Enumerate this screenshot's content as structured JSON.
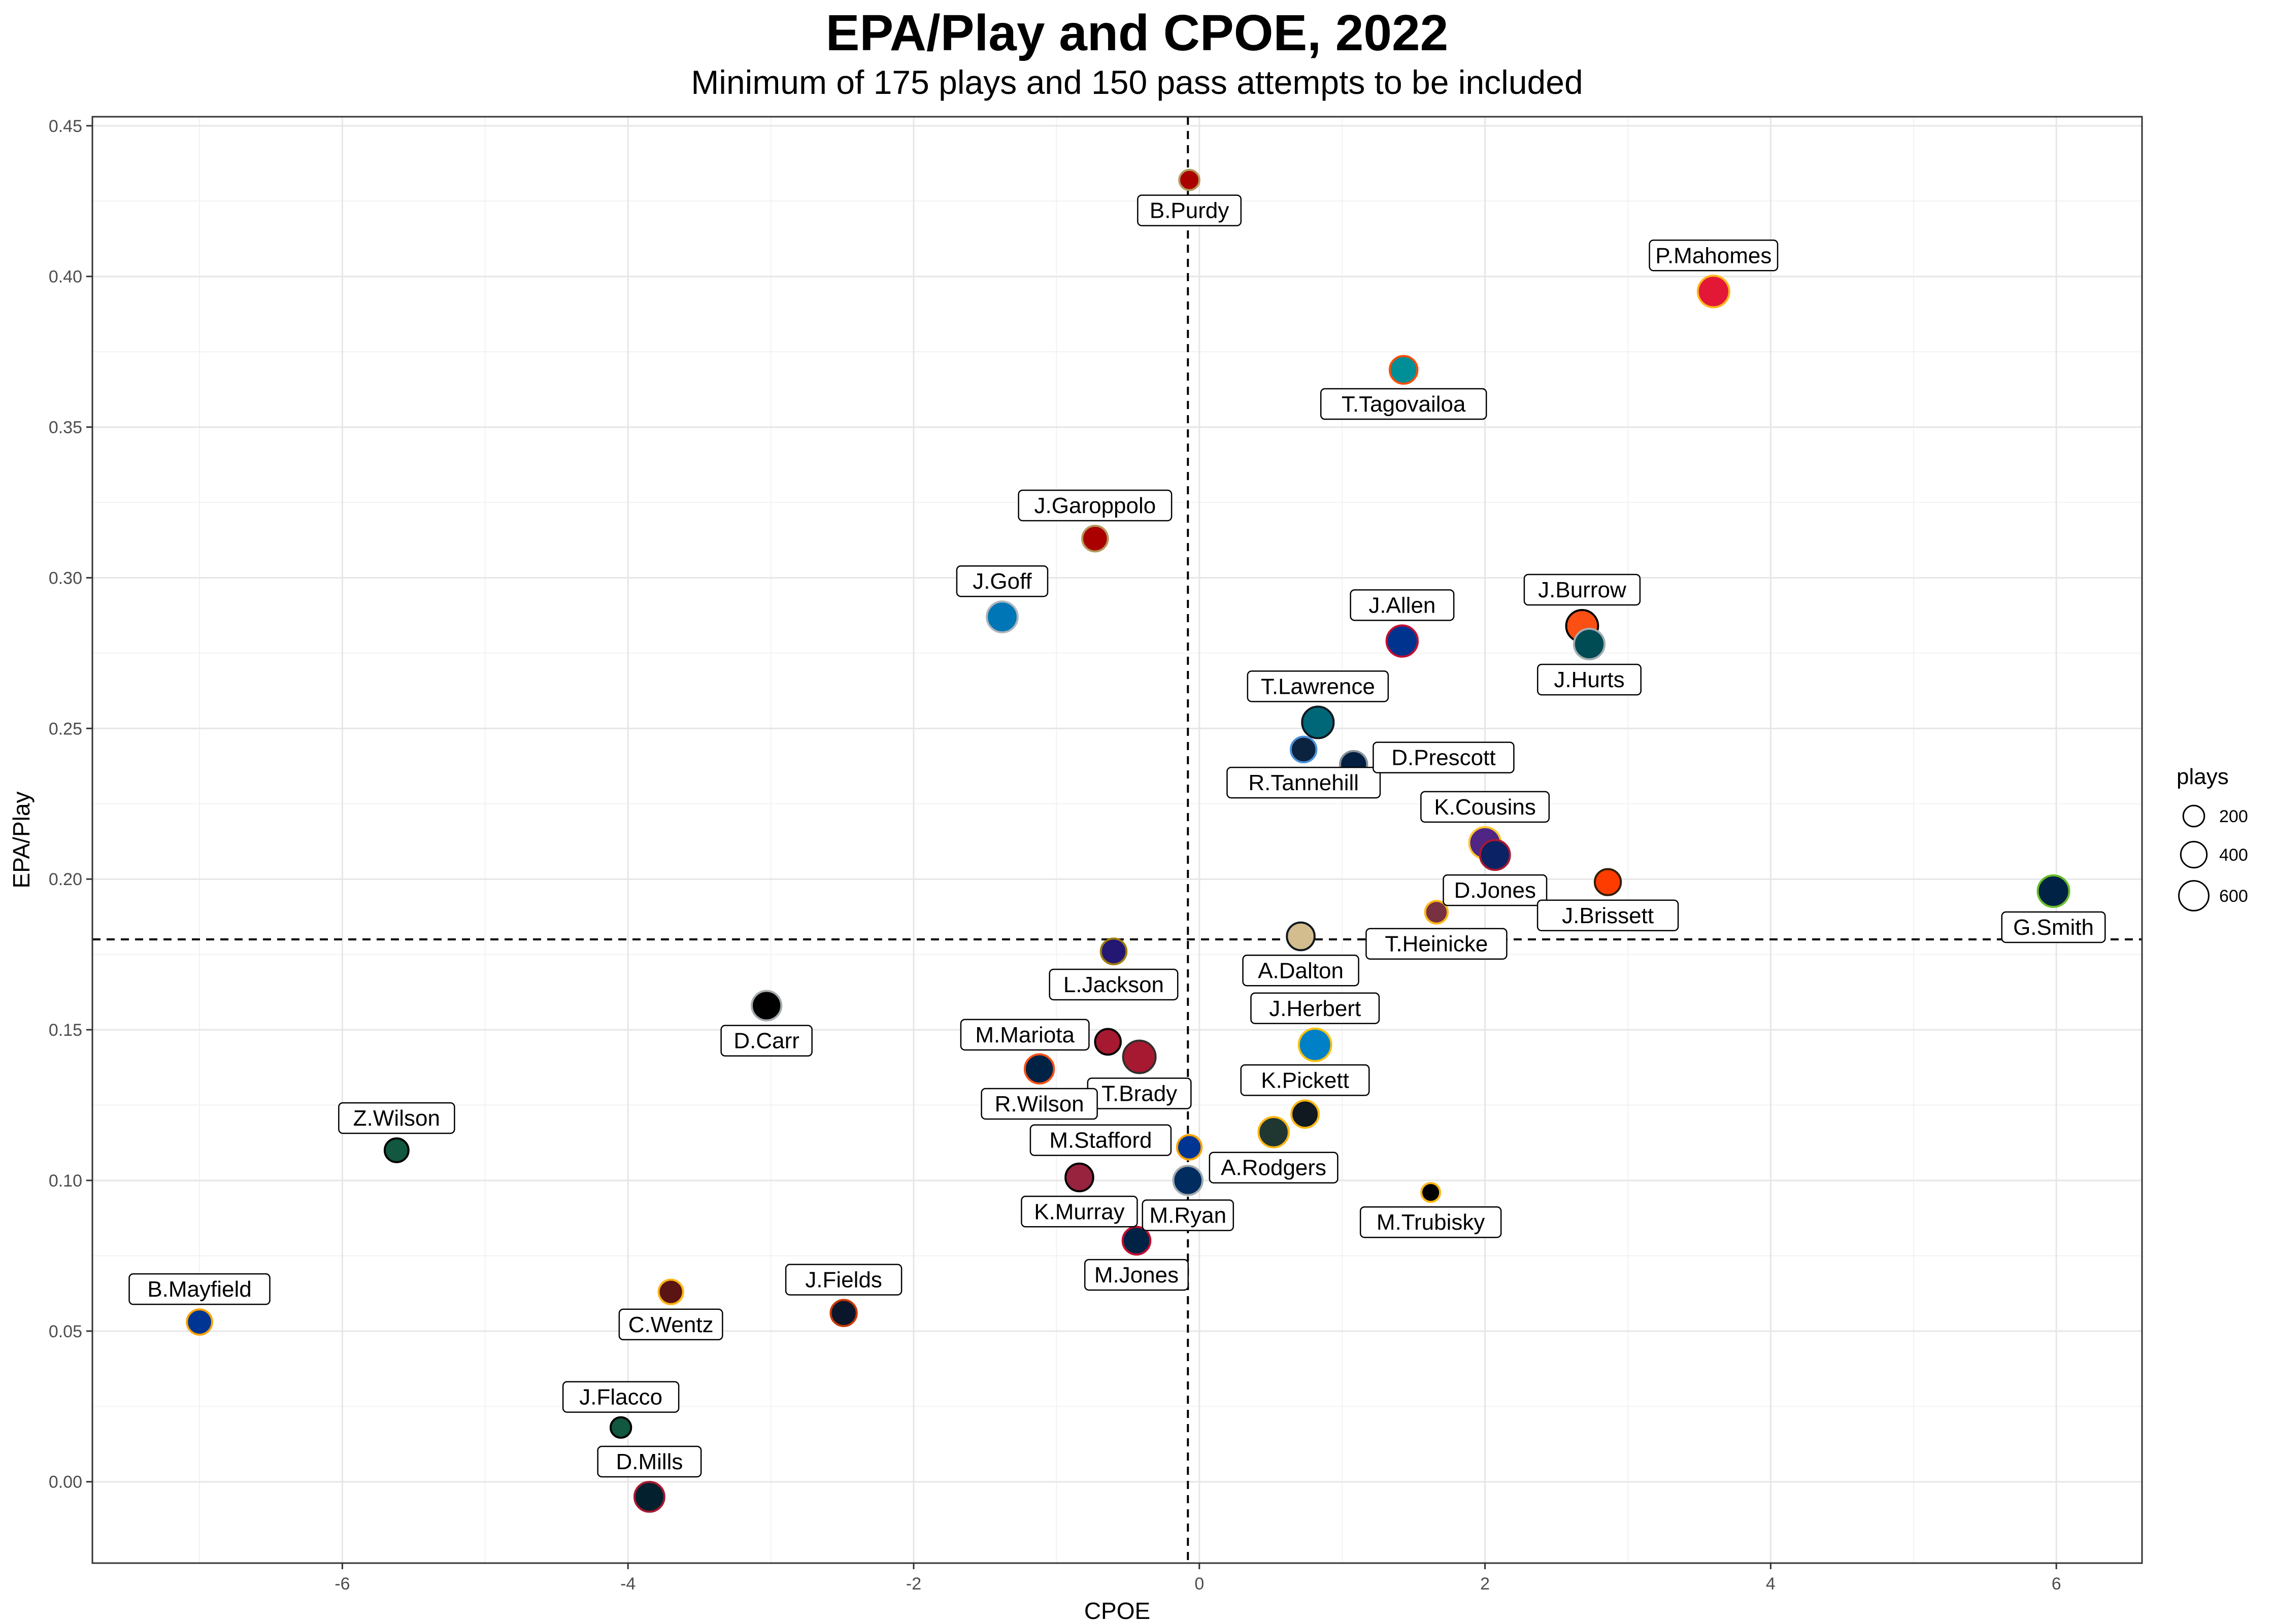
{
  "chart_data": {
    "type": "scatter",
    "title": "EPA/Play and CPOE, 2022",
    "subtitle": "Minimum of 175 plays and 150 pass attempts to be included",
    "xlabel": "CPOE",
    "ylabel": "EPA/Play",
    "xlim": [
      -7.75,
      6.6
    ],
    "ylim": [
      -0.027,
      0.453
    ],
    "x_ticks": [
      -6,
      -4,
      -2,
      0,
      2,
      4,
      6
    ],
    "x_tick_labels": [
      "-6",
      "-4",
      "-2",
      "0",
      "2",
      "4",
      "6"
    ],
    "y_ticks": [
      0.0,
      0.05,
      0.1,
      0.15,
      0.2,
      0.25,
      0.3,
      0.35,
      0.4,
      0.45
    ],
    "y_tick_labels": [
      "0.00",
      "0.05",
      "0.10",
      "0.15",
      "0.20",
      "0.25",
      "0.30",
      "0.35",
      "0.40",
      "0.45"
    ],
    "grid": true,
    "reference_lines": {
      "x": -0.08,
      "y": 0.18
    },
    "legend": {
      "title": "plays",
      "placement": "right",
      "entries": [
        {
          "label": "200",
          "value": 200
        },
        {
          "label": "400",
          "value": 400
        },
        {
          "label": "600",
          "value": 600
        }
      ]
    },
    "points": [
      {
        "name": "B.Purdy",
        "x": -0.07,
        "y": 0.432,
        "plays": 170,
        "fill": "#AA0000",
        "stroke": "#B3995D",
        "label_pos": "below"
      },
      {
        "name": "P.Mahomes",
        "x": 3.6,
        "y": 0.395,
        "plays": 700,
        "fill": "#E31837",
        "stroke": "#FFB81C",
        "label_pos": "above"
      },
      {
        "name": "T.Tagovailoa",
        "x": 1.43,
        "y": 0.369,
        "plays": 480,
        "fill": "#008E97",
        "stroke": "#FC4C02",
        "label_pos": "below"
      },
      {
        "name": "J.Garoppolo",
        "x": -0.73,
        "y": 0.313,
        "plays": 380,
        "fill": "#AA0000",
        "stroke": "#B3995D",
        "label_pos": "above"
      },
      {
        "name": "J.Goff",
        "x": -1.38,
        "y": 0.287,
        "plays": 660,
        "fill": "#0076B6",
        "stroke": "#B0B7BC",
        "label_pos": "above"
      },
      {
        "name": "J.Allen",
        "x": 1.42,
        "y": 0.279,
        "plays": 680,
        "fill": "#00338D",
        "stroke": "#C60C30",
        "label_pos": "above"
      },
      {
        "name": "J.Burrow",
        "x": 2.68,
        "y": 0.284,
        "plays": 720,
        "fill": "#FB4F14",
        "stroke": "#000000",
        "label_pos": "above"
      },
      {
        "name": "J.Hurts",
        "x": 2.73,
        "y": 0.278,
        "plays": 640,
        "fill": "#004C54",
        "stroke": "#A5ACAF",
        "label_pos": "below"
      },
      {
        "name": "T.Lawrence",
        "x": 0.83,
        "y": 0.252,
        "plays": 700,
        "fill": "#006778",
        "stroke": "#101820",
        "label_pos": "above"
      },
      {
        "name": "R.Tannehill",
        "x": 0.73,
        "y": 0.243,
        "plays": 380,
        "fill": "#0C2340",
        "stroke": "#4B92DB",
        "label_pos": "below"
      },
      {
        "name": "D.Prescott",
        "x": 1.08,
        "y": 0.238,
        "plays": 450,
        "fill": "#041E42",
        "stroke": "#869397",
        "label_pos": "right"
      },
      {
        "name": "K.Cousins",
        "x": 2.0,
        "y": 0.212,
        "plays": 700,
        "fill": "#4F2683",
        "stroke": "#FFC62F",
        "label_pos": "above"
      },
      {
        "name": "D.Jones",
        "x": 2.07,
        "y": 0.208,
        "plays": 600,
        "fill": "#0B2265",
        "stroke": "#A71930",
        "label_pos": "below"
      },
      {
        "name": "J.Brissett",
        "x": 2.86,
        "y": 0.199,
        "plays": 400,
        "fill": "#FF3C00",
        "stroke": "#311D00",
        "label_pos": "below"
      },
      {
        "name": "G.Smith",
        "x": 5.98,
        "y": 0.196,
        "plays": 700,
        "fill": "#002244",
        "stroke": "#69BE28",
        "label_pos": "below"
      },
      {
        "name": "T.Heinicke",
        "x": 1.66,
        "y": 0.189,
        "plays": 250,
        "fill": "#773141",
        "stroke": "#FFB612",
        "label_pos": "below"
      },
      {
        "name": "A.Dalton",
        "x": 0.71,
        "y": 0.181,
        "plays": 480,
        "fill": "#D3BC8D",
        "stroke": "#101820",
        "label_pos": "below"
      },
      {
        "name": "L.Jackson",
        "x": -0.6,
        "y": 0.176,
        "plays": 380,
        "fill": "#241773",
        "stroke": "#9E7C0C",
        "label_pos": "below"
      },
      {
        "name": "D.Carr",
        "x": -3.03,
        "y": 0.158,
        "plays": 580,
        "fill": "#000000",
        "stroke": "#A5ACAF",
        "label_pos": "below"
      },
      {
        "name": "M.Mariota",
        "x": -0.64,
        "y": 0.146,
        "plays": 380,
        "fill": "#A71930",
        "stroke": "#000000",
        "label_pos": "left"
      },
      {
        "name": "T.Brady",
        "x": -0.42,
        "y": 0.141,
        "plays": 760,
        "fill": "#A71930",
        "stroke": "#322F2B",
        "label_pos": "below"
      },
      {
        "name": "R.Wilson",
        "x": -1.12,
        "y": 0.137,
        "plays": 560,
        "fill": "#002244",
        "stroke": "#FB4F14",
        "label_pos": "below"
      },
      {
        "name": "J.Herbert",
        "x": 0.81,
        "y": 0.145,
        "plays": 760,
        "fill": "#0080C6",
        "stroke": "#FFC20E",
        "label_pos": "above"
      },
      {
        "name": "K.Pickett",
        "x": 0.74,
        "y": 0.122,
        "plays": 460,
        "fill": "#101820",
        "stroke": "#FFB612",
        "label_pos": "above"
      },
      {
        "name": "Z.Wilson",
        "x": -5.62,
        "y": 0.11,
        "plays": 300,
        "fill": "#125740",
        "stroke": "#000000",
        "label_pos": "above"
      },
      {
        "name": "A.Rodgers",
        "x": 0.52,
        "y": 0.116,
        "plays": 620,
        "fill": "#203731",
        "stroke": "#FFB612",
        "label_pos": "below"
      },
      {
        "name": "M.Stafford",
        "x": -0.07,
        "y": 0.111,
        "plays": 330,
        "fill": "#003594",
        "stroke": "#FFA300",
        "label_pos": "left"
      },
      {
        "name": "K.Murray",
        "x": -0.84,
        "y": 0.101,
        "plays": 480,
        "fill": "#97233F",
        "stroke": "#000000",
        "label_pos": "below"
      },
      {
        "name": "M.Ryan",
        "x": -0.08,
        "y": 0.1,
        "plays": 560,
        "fill": "#002C5F",
        "stroke": "#A2AAAD",
        "label_pos": "below"
      },
      {
        "name": "M.Trubisky",
        "x": 1.62,
        "y": 0.096,
        "plays": 130,
        "fill": "#000000",
        "stroke": "#FFB612",
        "label_pos": "below"
      },
      {
        "name": "M.Jones",
        "x": -0.44,
        "y": 0.08,
        "plays": 480,
        "fill": "#002244",
        "stroke": "#C60C30",
        "label_pos": "below"
      },
      {
        "name": "B.Mayfield",
        "x": -7.0,
        "y": 0.053,
        "plays": 360,
        "fill": "#003594",
        "stroke": "#FFA300",
        "label_pos": "above"
      },
      {
        "name": "C.Wentz",
        "x": -3.7,
        "y": 0.063,
        "plays": 330,
        "fill": "#5A1414",
        "stroke": "#FFB612",
        "label_pos": "below"
      },
      {
        "name": "J.Fields",
        "x": -2.49,
        "y": 0.056,
        "plays": 400,
        "fill": "#0B162A",
        "stroke": "#C83803",
        "label_pos": "above"
      },
      {
        "name": "J.Flacco",
        "x": -4.05,
        "y": 0.018,
        "plays": 180,
        "fill": "#125740",
        "stroke": "#000000",
        "label_pos": "above"
      },
      {
        "name": "D.Mills",
        "x": -3.85,
        "y": -0.005,
        "plays": 600,
        "fill": "#03202F",
        "stroke": "#A71930",
        "label_pos": "above"
      }
    ]
  }
}
